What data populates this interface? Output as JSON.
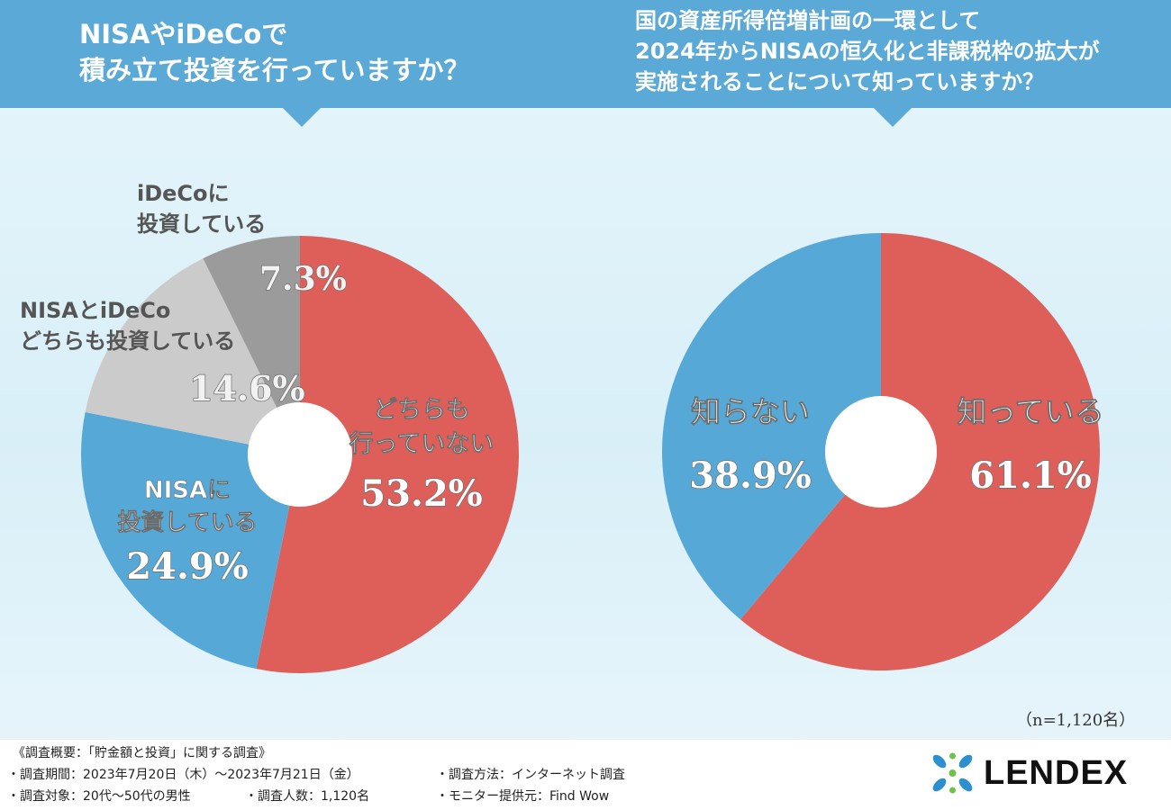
{
  "left_question": [
    "NISAやiDeCoで",
    "積み立て投資を行っていますか？"
  ],
  "right_question": [
    "国の資産所得倍増計画の一環として",
    "2024年からNISAの恒久化と非課税枠の拡大が",
    "実施されることについて知っていますか？"
  ],
  "chart_data": [
    {
      "type": "pie",
      "title": "NISAやiDeCoで積み立て投資を行っていますか？",
      "donut": true,
      "slices": [
        {
          "label": [
            "どちらも",
            "行っていない"
          ],
          "value": 53.2,
          "value_label": "53.2%",
          "color": "#de5f59",
          "label_style": "white"
        },
        {
          "label": [
            "NISAに",
            "投資している"
          ],
          "value": 24.9,
          "value_label": "24.9%",
          "color": "#56a9d6",
          "label_style": "white"
        },
        {
          "label": [
            "NISAとiDeCo",
            "どちらも投資している"
          ],
          "value": 14.6,
          "value_label": "14.6%",
          "color": "#cbcbcb",
          "label_style": "dark"
        },
        {
          "label": [
            "iDeCoに",
            "投資している"
          ],
          "value": 7.3,
          "value_label": "7.3%",
          "color": "#9b9b9b",
          "label_style": "dark"
        }
      ]
    },
    {
      "type": "pie",
      "title": "国の資産所得倍増計画の一環として2024年からNISAの恒久化と非課税枠の拡大が実施されることについて知っていますか？",
      "donut": true,
      "slices": [
        {
          "label": [
            "知っている"
          ],
          "value": 61.1,
          "value_label": "61.1%",
          "color": "#de5f59",
          "label_style": "white"
        },
        {
          "label": [
            "知らない"
          ],
          "value": 38.9,
          "value_label": "38.9%",
          "color": "#56a9d6",
          "label_style": "white"
        }
      ]
    }
  ],
  "sample_size": "（n=1,120名）",
  "footer": {
    "heading": "《調査概要：「貯金額と投資」に関する調査》",
    "period": "・調査期間：2023年7月20日（木）～2023年7月21日（金）",
    "method": "・調査方法：インターネット調査",
    "target": "・調査対象：20代～50代の男性",
    "count": "・調査人数：1,120名",
    "provider": "・モニター提供元：Find Wow"
  },
  "logo_text": "LENDEX",
  "colors": {
    "banner": "#5aa9d6",
    "red": "#de5f59",
    "blue": "#56a9d6",
    "light_gray": "#cbcbcb",
    "dark_gray": "#9b9b9b"
  }
}
